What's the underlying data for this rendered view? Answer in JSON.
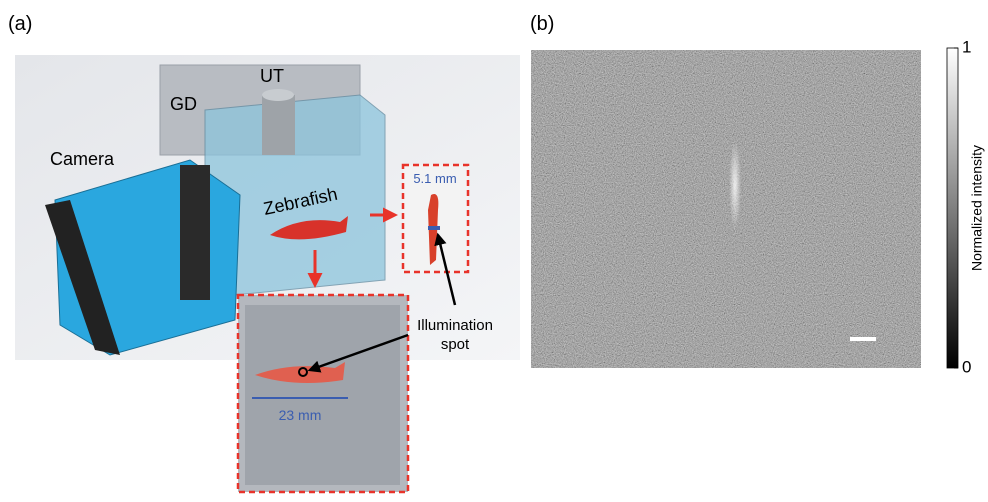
{
  "panel_a": {
    "label": "(a)",
    "ut": "UT",
    "gd": "GD",
    "camera": "Camera",
    "zebrafish": "Zebrafish",
    "fish_width": "5.1 mm",
    "fish_length": "23 mm",
    "illumination": [
      "Illumination",
      "spot"
    ]
  },
  "panel_b": {
    "label": "(b)",
    "colorbar": {
      "title": "Normalized intensity",
      "ticks": [
        0,
        1
      ]
    }
  }
}
